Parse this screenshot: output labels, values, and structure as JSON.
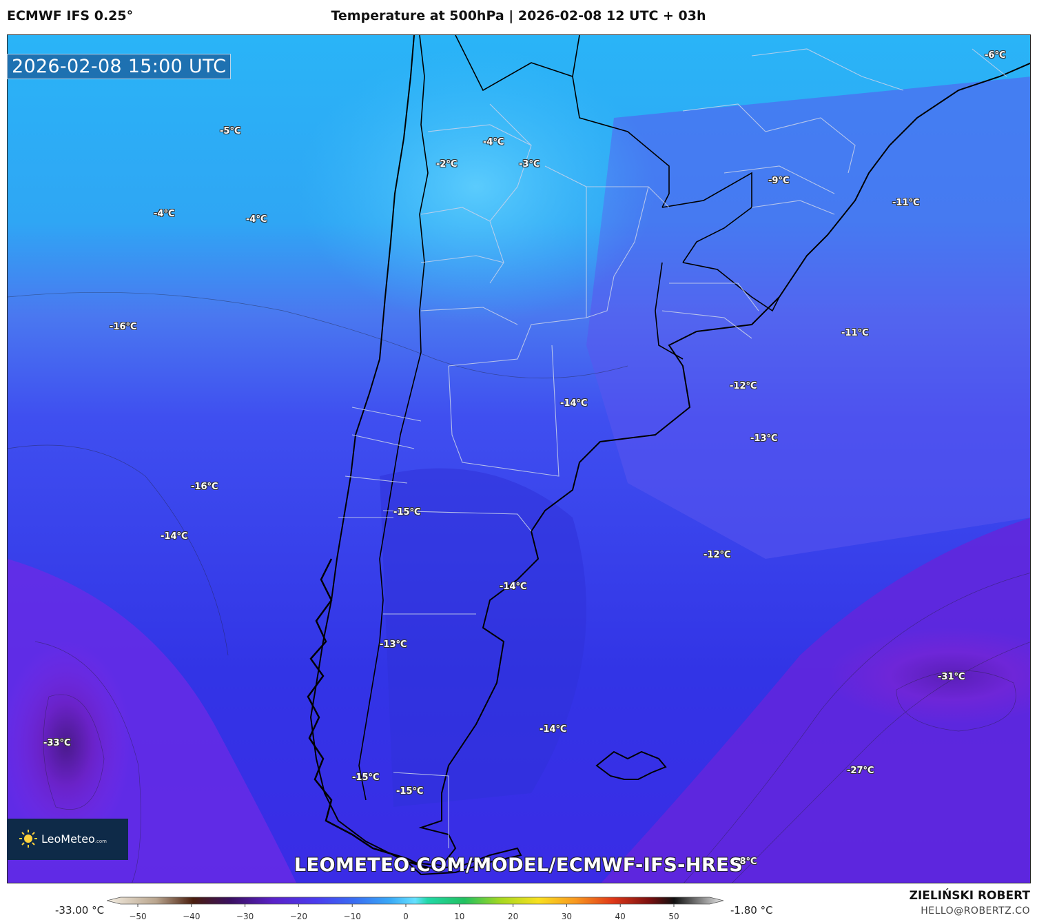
{
  "header": {
    "model": "ECMWF IFS 0.25°",
    "title": "Temperature at 500hPa | 2026-02-08 12 UTC + 03h"
  },
  "map": {
    "valid_time": "2026-02-08 15:00 UTC",
    "labels": [
      {
        "text": "-6°C"
      },
      {
        "text": "-5°C"
      },
      {
        "text": "-4°C"
      },
      {
        "text": "-2°C"
      },
      {
        "text": "-3°C"
      },
      {
        "text": "-4°C"
      },
      {
        "text": "-4°C"
      },
      {
        "text": "-9°C"
      },
      {
        "text": "-11°C"
      },
      {
        "text": "-16°C"
      },
      {
        "text": "-11°C"
      },
      {
        "text": "-12°C"
      },
      {
        "text": "-14°C"
      },
      {
        "text": "-13°C"
      },
      {
        "text": "-16°C"
      },
      {
        "text": "-15°C"
      },
      {
        "text": "-14°C"
      },
      {
        "text": "-12°C"
      },
      {
        "text": "-14°C"
      },
      {
        "text": "-13°C"
      },
      {
        "text": "-31°C"
      },
      {
        "text": "-33°C"
      },
      {
        "text": "-14°C"
      },
      {
        "text": "-27°C"
      },
      {
        "text": "-15°C"
      },
      {
        "text": "-15°C"
      },
      {
        "text": "-28°C"
      }
    ],
    "colors": {
      "warm_band": "#3fb6f5",
      "mid": "#3d5cf2",
      "cold": "#3329dd",
      "very_cold": "#7a28e6"
    }
  },
  "logo": {
    "name": "LeoMeteo",
    "suffix": ".com",
    "icon": "sun-icon"
  },
  "url": "LEOMETEO.COM/MODEL/ECMWF-IFS-HRES",
  "colorbar": {
    "min_label": "-33.00 °C",
    "max_label": "-1.80 °C",
    "ticks": [
      "−50",
      "−40",
      "−30",
      "−20",
      "−10",
      "0",
      "10",
      "20",
      "30",
      "40",
      "50"
    ]
  },
  "credit": {
    "name": "ZIELIŃSKI ROBERT",
    "email": "HELLO@ROBERTZ.CO"
  }
}
